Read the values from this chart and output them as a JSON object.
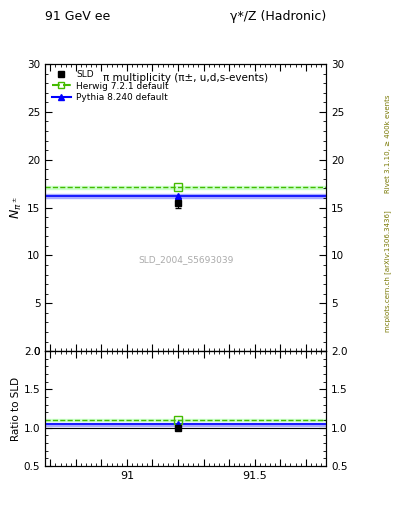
{
  "title_top_left": "91 GeV ee",
  "title_top_right": "γ*/Z (Hadronic)",
  "plot_title": "π multiplicity (π±, u,d,s-events)",
  "ylabel_main": "$N_{\\pi^{\\pm}}$",
  "ylabel_ratio": "Ratio to SLD",
  "watermark": "SLD_2004_S5693039",
  "rivet_label": "Rivet 3.1.10, ≥ 400k events",
  "arxiv_label": "mcplots.cern.ch [arXiv:1306.3436]",
  "xmin": 90.68,
  "xmax": 91.78,
  "ymin_main": 0.0,
  "ymax_main": 30.0,
  "ymin_ratio": 0.5,
  "ymax_ratio": 2.0,
  "sld_x": 91.2,
  "sld_y": 15.5,
  "sld_yerr": 0.5,
  "herwig_y": 17.1,
  "herwig_x": 91.2,
  "pythia_y": 16.2,
  "pythia_x": 91.2,
  "herwig_color": "#44bb00",
  "pythia_color": "#0000ff",
  "sld_color": "#000000",
  "herwig_band_color": "#ccffcc",
  "pythia_band_color": "#aaaaff",
  "ratio_herwig_y": 1.103,
  "ratio_pythia_y": 1.045,
  "ratio_sld_y": 1.0,
  "yticks_main": [
    0,
    5,
    10,
    15,
    20,
    25,
    30
  ],
  "yticks_ratio": [
    0.5,
    1.0,
    1.5,
    2.0
  ],
  "xtick_positions": [
    90.7,
    90.8,
    90.9,
    91.0,
    91.1,
    91.2,
    91.3,
    91.4,
    91.5,
    91.6,
    91.7
  ],
  "xtick_labels": [
    "",
    "",
    "",
    "91",
    "",
    "",
    "",
    "",
    "91.5",
    "",
    ""
  ]
}
